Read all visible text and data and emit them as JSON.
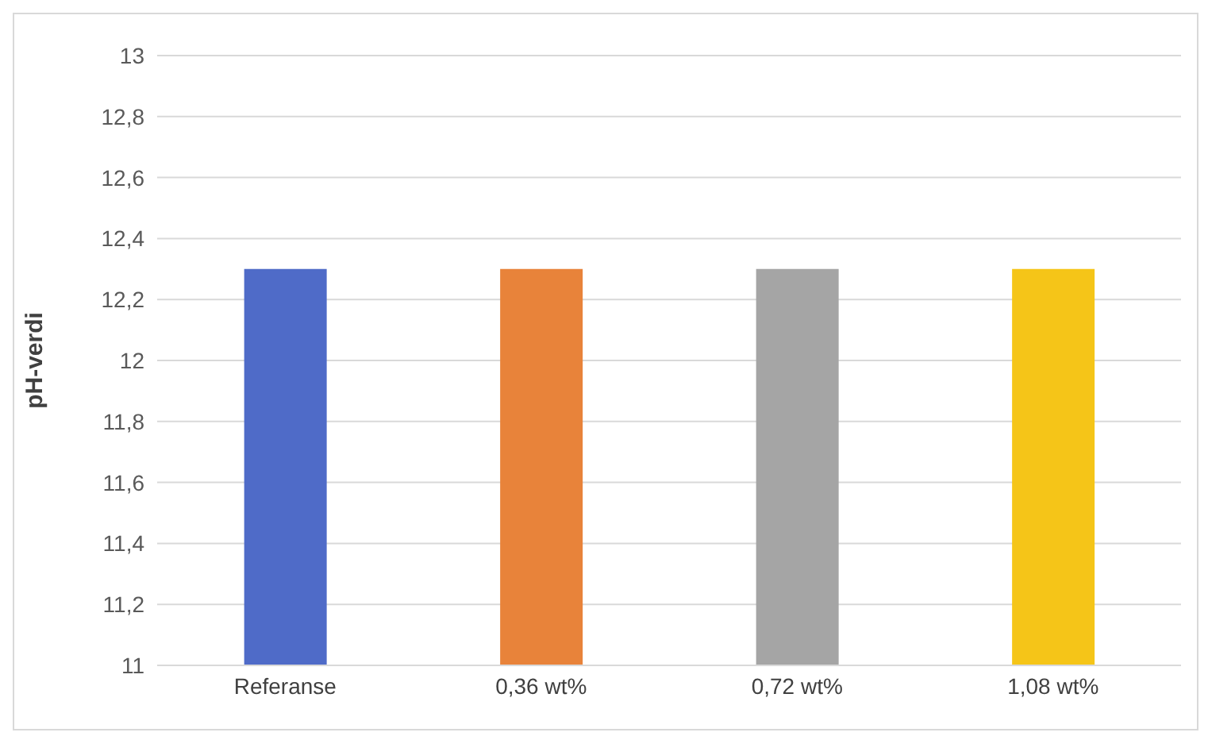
{
  "chart_data": {
    "type": "bar",
    "ylabel": "pH-verdi",
    "categories": [
      "Referanse",
      "0,36 wt%",
      "0,72 wt%",
      "1,08 wt%"
    ],
    "values": [
      12.3,
      12.3,
      12.3,
      12.3
    ],
    "colors": [
      "#4f6bc8",
      "#e8833a",
      "#a5a5a5",
      "#f5c518"
    ],
    "ylim": [
      11,
      13
    ],
    "yticks": [
      11,
      {
        "value": 11.2,
        "label": "11,2"
      },
      {
        "value": 11.4,
        "label": "11,4"
      },
      {
        "value": 11.6,
        "label": "11,6"
      },
      {
        "value": 11.8,
        "label": "11,8"
      },
      12,
      {
        "value": 12.2,
        "label": "12,2"
      },
      {
        "value": 12.4,
        "label": "12,4"
      },
      {
        "value": 12.6,
        "label": "12,6"
      },
      {
        "value": 12.8,
        "label": "12,8"
      },
      13
    ],
    "grid": "y"
  }
}
